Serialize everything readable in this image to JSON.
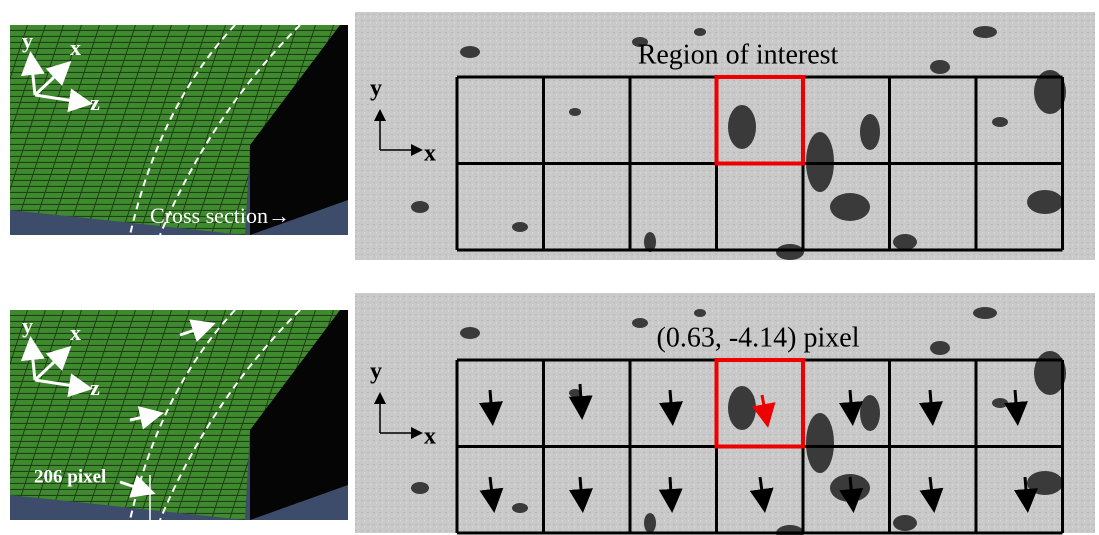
{
  "panels": [
    {
      "model": {
        "axes": [
          "y",
          "x",
          "z"
        ],
        "label": "Cross section→"
      },
      "image": {
        "axes": [
          "y",
          "x"
        ],
        "label": "Region of interest"
      }
    },
    {
      "model": {
        "axes": [
          "y",
          "x",
          "z"
        ],
        "label": "206 pixel"
      },
      "image": {
        "axes": [
          "y",
          "x"
        ],
        "label": "(0.63, -4.14) pixel"
      }
    }
  ]
}
